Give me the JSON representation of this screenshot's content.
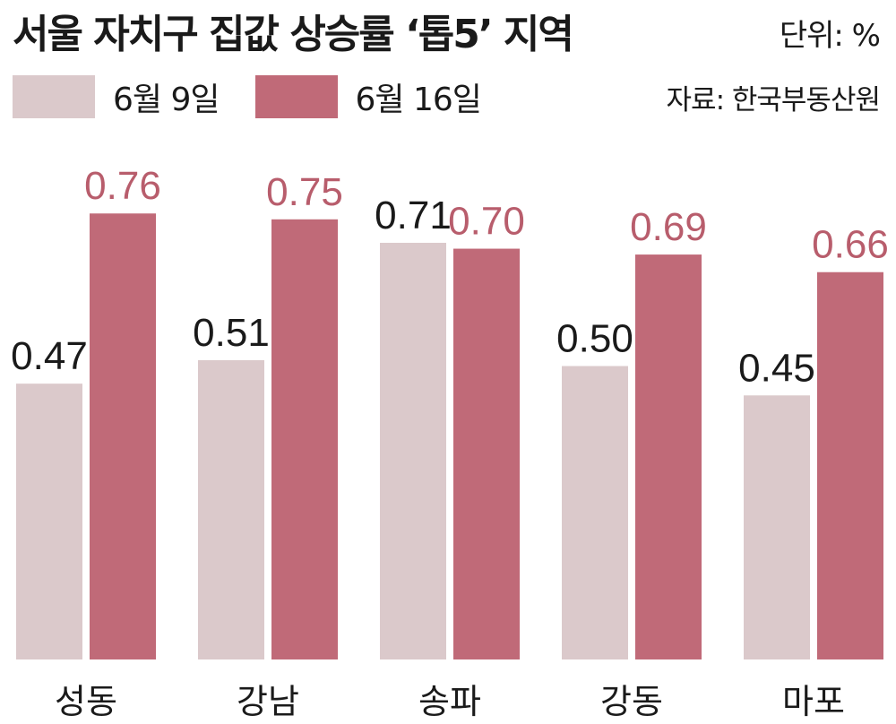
{
  "title": "서울 자치구 집값 상승률 ‘톱5’ 지역",
  "unit": "단위: %",
  "source": "자료: 한국부동산원",
  "colors": {
    "series1": "#dbc9cb",
    "series2": "#c06a78",
    "value1": "#1a1a1a",
    "value2": "#b85d6c"
  },
  "chart_data": {
    "type": "bar",
    "categories": [
      "성동",
      "강남",
      "송파",
      "강동",
      "마포"
    ],
    "series": [
      {
        "name": "6월 9일",
        "values": [
          0.47,
          0.51,
          0.71,
          0.5,
          0.45
        ],
        "labels": [
          "0.47",
          "0.51",
          "0.71",
          "0.50",
          "0.45"
        ]
      },
      {
        "name": "6월 16일",
        "values": [
          0.76,
          0.75,
          0.7,
          0.69,
          0.66
        ],
        "labels": [
          "0.76",
          "0.75",
          "0.70",
          "0.69",
          "0.66"
        ]
      }
    ],
    "ylim": [
      0,
      0.91
    ],
    "grid": false,
    "legend_position": "top-left"
  }
}
